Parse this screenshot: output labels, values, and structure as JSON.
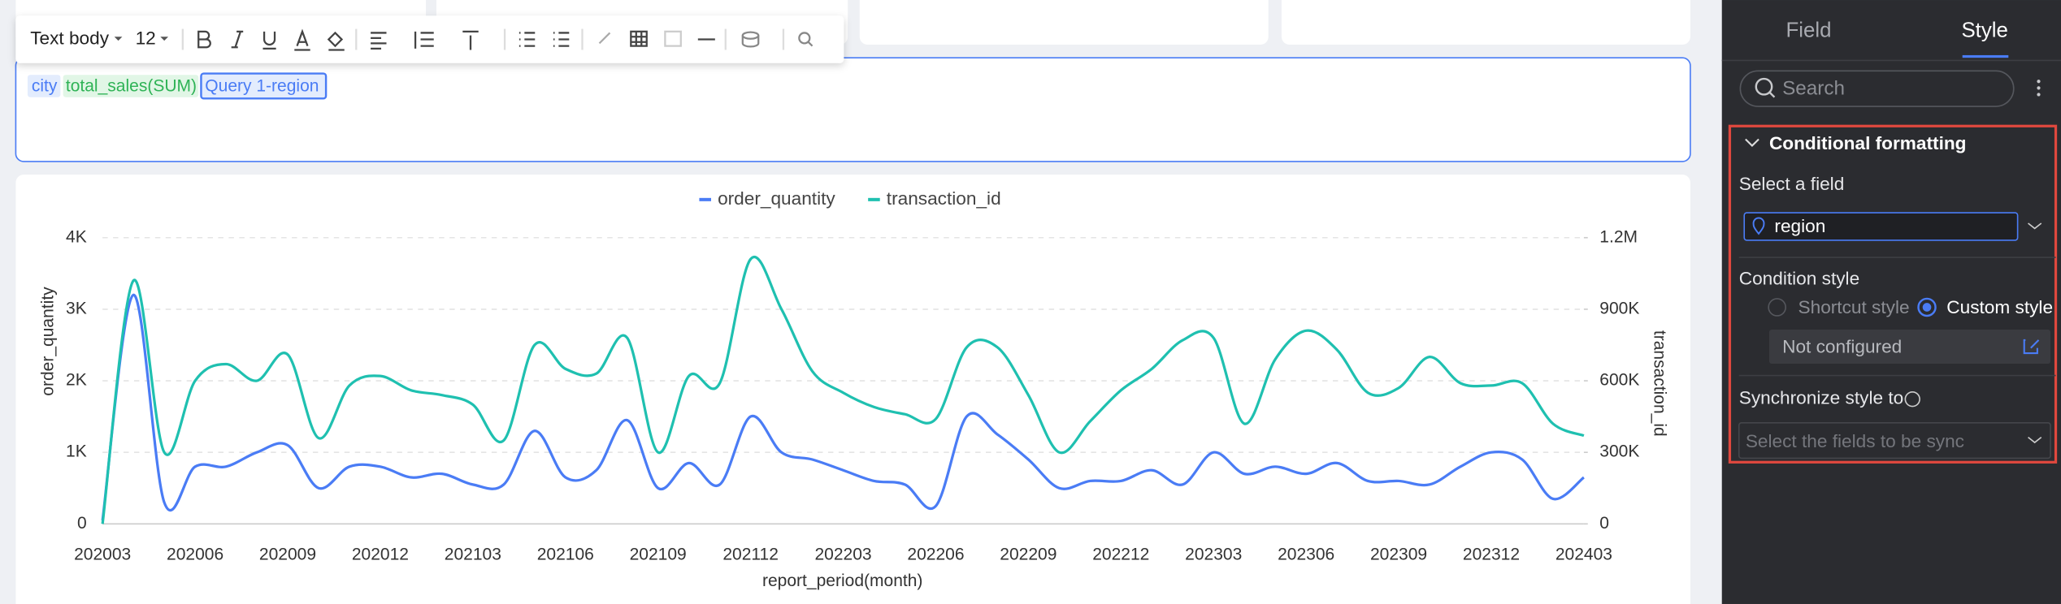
{
  "toolbar": {
    "text_style": "Text body",
    "font_size": "12"
  },
  "editor": {
    "tokens": [
      "city",
      "total_sales(SUM)",
      "Query 1-region"
    ]
  },
  "panel": {
    "tabs": [
      "Field",
      "Style"
    ],
    "search": "Search",
    "section": "Conditional formatting",
    "select_field_label": "Select a field",
    "field": "region",
    "condition_style_label": "Condition style",
    "options": [
      "Shortcut style",
      "Custom style"
    ],
    "custom_value": "Not configured",
    "sync_label": "Synchronize style to",
    "sync_placeholder": "Select the fields to be sync"
  },
  "chart_data": {
    "type": "line",
    "x_label": "report_period(month)",
    "y_label": "order_quantity",
    "y2_label": "transaction_id",
    "categories": [
      "202003",
      null,
      null,
      "202006",
      null,
      null,
      "202009",
      null,
      null,
      "202012",
      null,
      null,
      "202103",
      null,
      null,
      "202106",
      null,
      null,
      "202109",
      null,
      null,
      "202112",
      null,
      null,
      "202203",
      null,
      null,
      "202206",
      null,
      null,
      "202209",
      null,
      null,
      "202212",
      null,
      null,
      "202303",
      null,
      null,
      "202306",
      null,
      null,
      "202309",
      null,
      null,
      "202312",
      null,
      null,
      "202403"
    ],
    "series": [
      {
        "name": "order_quantity",
        "color": "#4a7cf5",
        "values": [
          50,
          3200,
          300,
          800,
          800,
          1000,
          1100,
          500,
          800,
          800,
          650,
          700,
          550,
          550,
          1300,
          650,
          750,
          1450,
          500,
          850,
          550,
          1500,
          1000,
          900,
          750,
          600,
          550,
          250,
          1500,
          1250,
          900,
          500,
          600,
          600,
          750,
          550,
          1000,
          700,
          800,
          700,
          850,
          600,
          600,
          550,
          800,
          1000,
          900,
          350,
          650
        ]
      },
      {
        "name": "transaction_id",
        "color": "#1fc0b0",
        "axis": "y2",
        "values": [
          0,
          1020000,
          300000,
          600000,
          670000,
          600000,
          710000,
          360000,
          580000,
          620000,
          560000,
          540000,
          500000,
          350000,
          750000,
          650000,
          630000,
          780000,
          300000,
          620000,
          590000,
          1110000,
          900000,
          640000,
          550000,
          490000,
          460000,
          440000,
          740000,
          740000,
          540000,
          300000,
          430000,
          560000,
          650000,
          770000,
          780000,
          420000,
          690000,
          810000,
          730000,
          550000,
          570000,
          700000,
          590000,
          580000,
          590000,
          420000,
          370000
        ]
      }
    ],
    "ylim": [
      0,
      4000
    ],
    "yticks": [
      0,
      {
        "value": 1000,
        "label": "1K"
      },
      {
        "value": 2000,
        "label": "2K"
      },
      {
        "value": 3000,
        "label": "3K"
      },
      {
        "value": 4000,
        "label": "4K"
      }
    ],
    "y2lim": [
      0,
      1200000
    ],
    "y2ticks": [
      0,
      {
        "value": 300000,
        "label": "300K"
      },
      {
        "value": 600000,
        "label": "600K"
      },
      {
        "value": 900000,
        "label": "900K"
      },
      {
        "value": 1200000,
        "label": "1.2M"
      }
    ],
    "grid": true,
    "legend": "top"
  }
}
